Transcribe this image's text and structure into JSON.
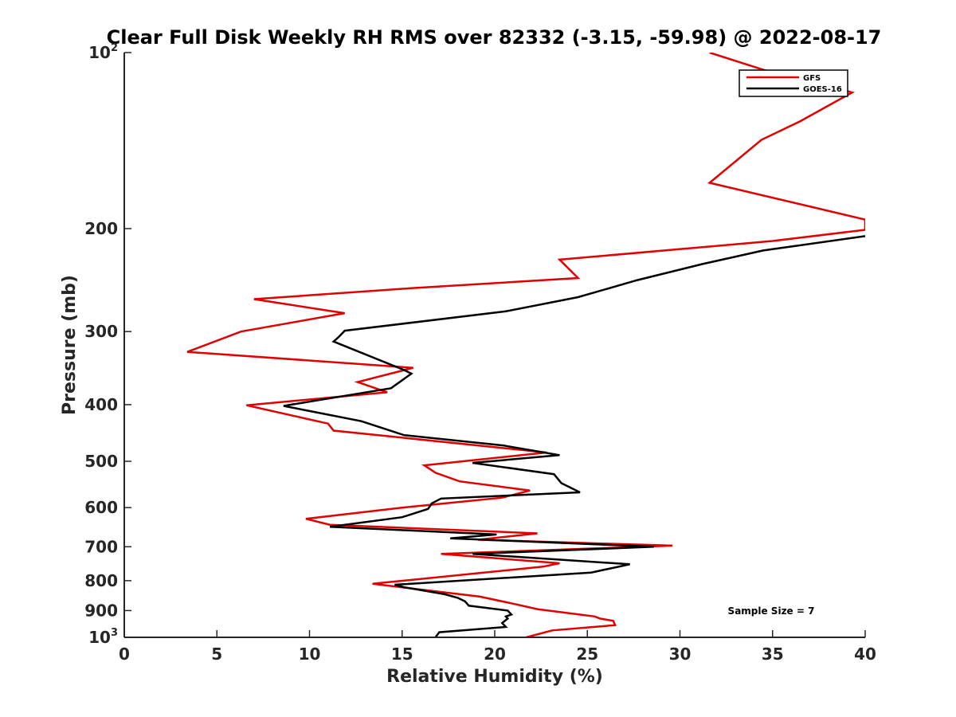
{
  "chart_data": {
    "type": "line",
    "title": "Clear Full Disk Weekly RH RMS over 82332 (-3.15, -59.98) @ 2022-08-17",
    "xlabel": "Relative Humidity (%)",
    "ylabel": "Pressure (mb)",
    "xlim": [
      0,
      40
    ],
    "ylim": [
      100,
      1000
    ],
    "y_scale": "log",
    "y_reversed": true,
    "x_ticks": [
      0,
      5,
      10,
      15,
      20,
      25,
      30,
      35,
      40
    ],
    "x_tick_labels": [
      "0",
      "5",
      "10",
      "15",
      "20",
      "25",
      "30",
      "35",
      "40"
    ],
    "y_ticks": [
      {
        "value": 100,
        "base": "10",
        "sup": "2"
      },
      {
        "value": 200,
        "base": "200",
        "sup": ""
      },
      {
        "value": 300,
        "base": "300",
        "sup": ""
      },
      {
        "value": 400,
        "base": "400",
        "sup": ""
      },
      {
        "value": 500,
        "base": "500",
        "sup": ""
      },
      {
        "value": 600,
        "base": "600",
        "sup": ""
      },
      {
        "value": 700,
        "base": "700",
        "sup": ""
      },
      {
        "value": 800,
        "base": "800",
        "sup": ""
      },
      {
        "value": 900,
        "base": "900",
        "sup": ""
      },
      {
        "value": 1000,
        "base": "10",
        "sup": "3"
      }
    ],
    "grid": false,
    "legend_position": "top-right",
    "annotation": "Sample Size = 7",
    "series": [
      {
        "name": "GFS",
        "color": "#e00000",
        "points": [
          [
            31.6,
            100
          ],
          [
            34.5,
            107
          ],
          [
            39.3,
            117
          ],
          [
            36.5,
            131
          ],
          [
            34.4,
            141
          ],
          [
            31.6,
            167
          ],
          [
            40.0,
            193
          ],
          [
            40.0,
            201
          ],
          [
            35.0,
            210
          ],
          [
            23.5,
            226
          ],
          [
            24.5,
            243
          ],
          [
            15.4,
            253
          ],
          [
            7.0,
            264
          ],
          [
            11.9,
            279
          ],
          [
            6.3,
            300
          ],
          [
            3.4,
            325
          ],
          [
            15.6,
            346
          ],
          [
            12.6,
            366
          ],
          [
            14.2,
            381
          ],
          [
            6.6,
            401
          ],
          [
            11.0,
            431
          ],
          [
            11.3,
            443
          ],
          [
            22.8,
            483
          ],
          [
            16.2,
            508
          ],
          [
            16.8,
            523
          ],
          [
            18.1,
            541
          ],
          [
            21.9,
            561
          ],
          [
            20.4,
            577
          ],
          [
            14.8,
            601
          ],
          [
            9.8,
            627
          ],
          [
            11.1,
            642
          ],
          [
            22.3,
            664
          ],
          [
            19.1,
            681
          ],
          [
            29.6,
            697
          ],
          [
            17.1,
            720
          ],
          [
            23.5,
            747
          ],
          [
            22.6,
            757
          ],
          [
            13.4,
            810
          ],
          [
            19.2,
            852
          ],
          [
            21.0,
            876
          ],
          [
            22.3,
            895
          ],
          [
            25.4,
            921
          ],
          [
            25.7,
            929
          ],
          [
            26.4,
            937
          ],
          [
            26.5,
            953
          ],
          [
            23.1,
            973
          ],
          [
            21.7,
            1000
          ]
        ]
      },
      {
        "name": "GOES-16",
        "color": "#000000",
        "points": [
          [
            40.0,
            206
          ],
          [
            34.5,
            218
          ],
          [
            31.2,
            230
          ],
          [
            27.7,
            245
          ],
          [
            24.5,
            262
          ],
          [
            20.6,
            277
          ],
          [
            11.9,
            299
          ],
          [
            11.6,
            306
          ],
          [
            11.3,
            312
          ],
          [
            15.1,
            349
          ],
          [
            15.5,
            354
          ],
          [
            14.4,
            375
          ],
          [
            8.6,
            402
          ],
          [
            12.8,
            427
          ],
          [
            15.1,
            451
          ],
          [
            20.5,
            470
          ],
          [
            23.5,
            488
          ],
          [
            18.8,
            503
          ],
          [
            23.2,
            526
          ],
          [
            23.6,
            545
          ],
          [
            24.6,
            565
          ],
          [
            17.1,
            579
          ],
          [
            16.6,
            590
          ],
          [
            16.4,
            603
          ],
          [
            15.0,
            623
          ],
          [
            11.1,
            647
          ],
          [
            20.1,
            667
          ],
          [
            17.6,
            677
          ],
          [
            28.6,
            700
          ],
          [
            18.8,
            720
          ],
          [
            27.3,
            750
          ],
          [
            25.2,
            775
          ],
          [
            14.6,
            813
          ],
          [
            15.1,
            821
          ],
          [
            17.3,
            844
          ],
          [
            18.0,
            856
          ],
          [
            18.4,
            868
          ],
          [
            18.6,
            883
          ],
          [
            20.7,
            900
          ],
          [
            20.9,
            914
          ],
          [
            20.6,
            921
          ],
          [
            20.7,
            929
          ],
          [
            20.4,
            945
          ],
          [
            20.6,
            960
          ],
          [
            17.0,
            980
          ],
          [
            16.8,
            1000
          ]
        ]
      }
    ]
  }
}
